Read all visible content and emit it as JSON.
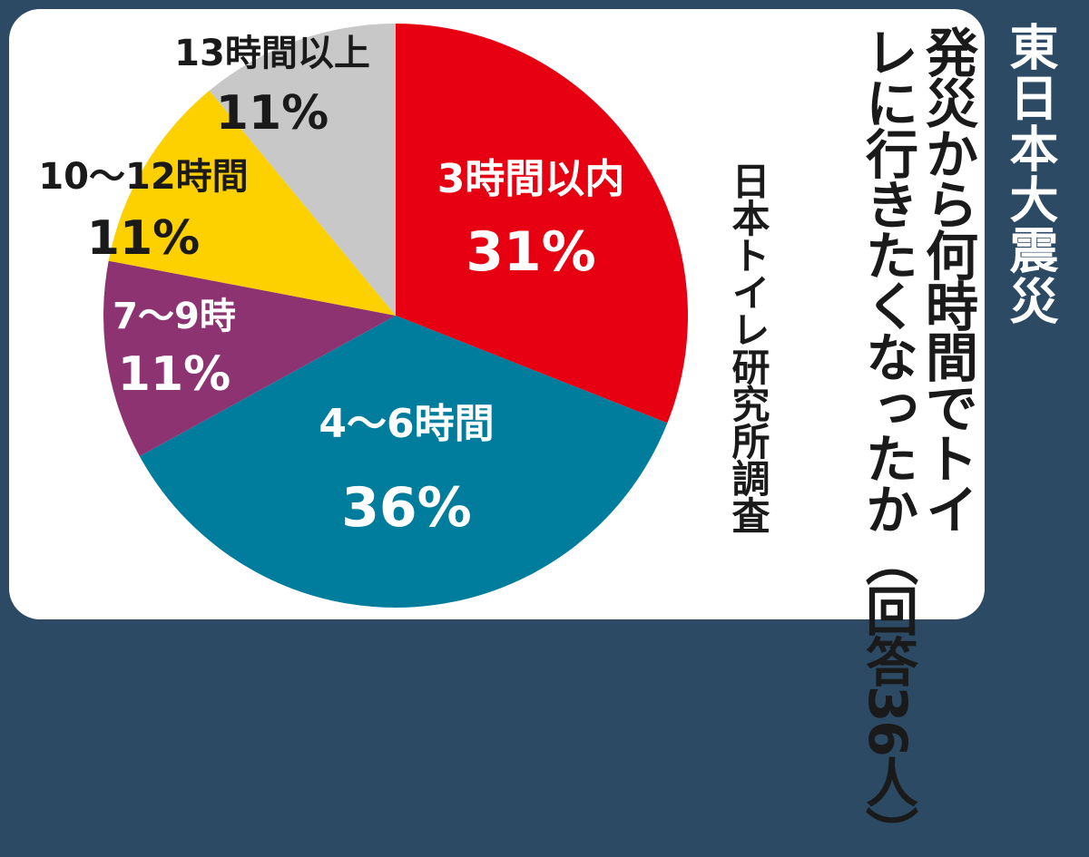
{
  "badge": "東日本大震災",
  "title": {
    "line1": "発災から何時間でトイ",
    "line2": "レに行きたくなったか",
    "note": "（回答36人）"
  },
  "source": "日本トイレ研究所調査",
  "chart_data": {
    "type": "pie",
    "title": "発災から何時間でトイレに行きたくなったか",
    "slices": [
      {
        "label": "3時間以内",
        "value": 31,
        "display": "31%",
        "color": "#e60012"
      },
      {
        "label": "4〜6時間",
        "value": 36,
        "display": "36%",
        "color": "#007c9c"
      },
      {
        "label": "7〜9時",
        "value": 11,
        "display": "11%",
        "color": "#8e3372"
      },
      {
        "label": "10〜12時間",
        "value": 11,
        "display": "11%",
        "color": "#fdd000"
      },
      {
        "label": "13時間以上",
        "value": 11,
        "display": "11%",
        "color": "#c8c8c8"
      }
    ],
    "legend": "none"
  }
}
